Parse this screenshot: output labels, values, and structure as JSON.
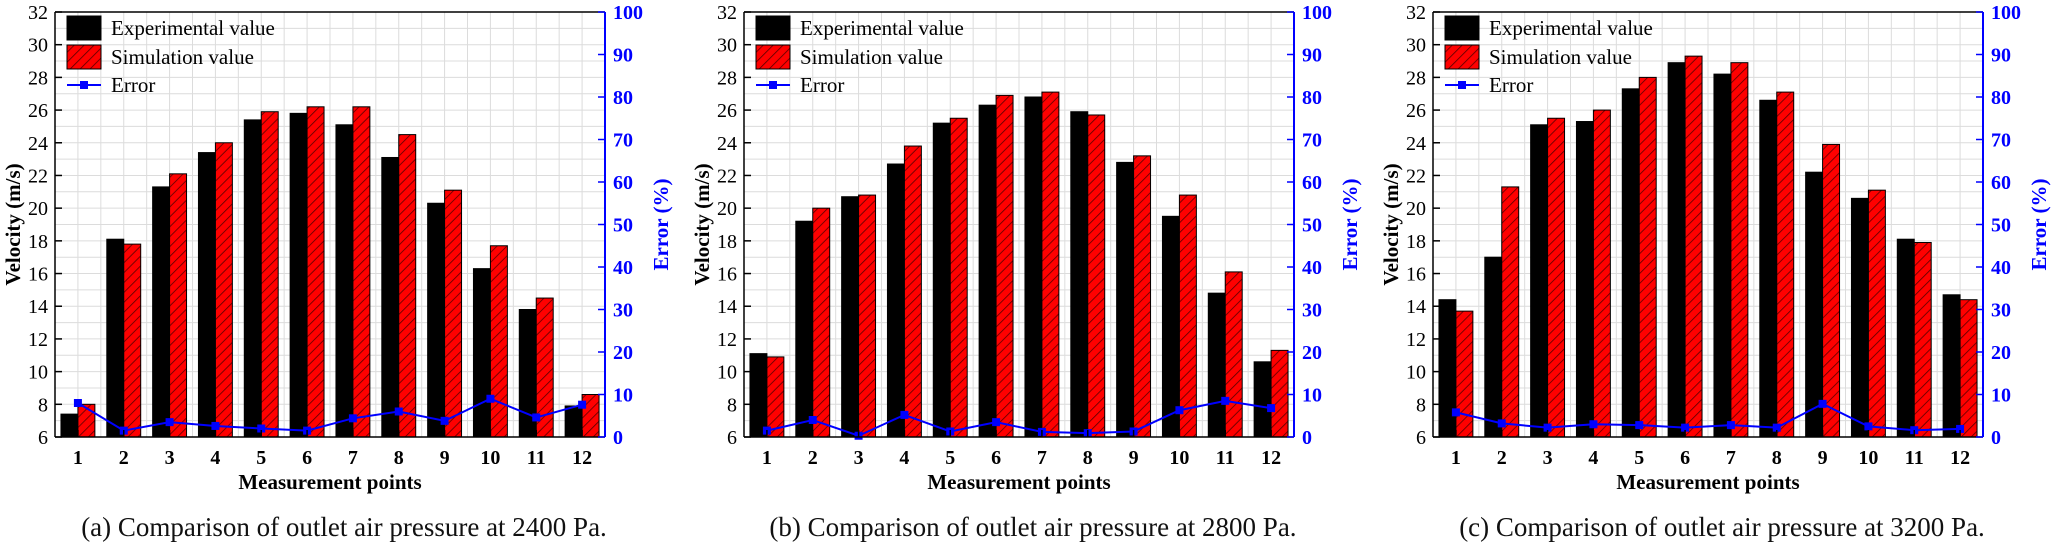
{
  "chart_data": [
    {
      "type": "bar",
      "categories": [
        "1",
        "2",
        "3",
        "4",
        "5",
        "6",
        "7",
        "8",
        "9",
        "10",
        "11",
        "12"
      ],
      "series": [
        {
          "name": "Experimental value",
          "values": [
            7.4,
            18.1,
            21.3,
            23.4,
            25.4,
            25.8,
            25.1,
            23.1,
            20.3,
            16.3,
            13.8,
            7.9
          ]
        },
        {
          "name": "Simulation value",
          "values": [
            8.0,
            17.8,
            22.1,
            24.0,
            25.9,
            26.2,
            26.2,
            24.5,
            21.1,
            17.7,
            14.5,
            8.6
          ]
        },
        {
          "name": "Error",
          "axis": "right",
          "values": [
            8.0,
            1.5,
            3.5,
            2.6,
            2.0,
            1.5,
            4.4,
            6.0,
            3.8,
            9.0,
            4.6,
            7.6
          ]
        }
      ],
      "xlabel": "Measurement points",
      "ylabel": "Velocity (m/s)",
      "y2label": "Error (%)",
      "ylim": [
        6,
        32
      ],
      "y2lim": [
        0,
        100
      ],
      "yticks": [
        "6",
        "8",
        "10",
        "12",
        "14",
        "16",
        "18",
        "20",
        "22",
        "24",
        "26",
        "28",
        "30",
        "32"
      ],
      "y2ticks": [
        "0",
        "10",
        "20",
        "30",
        "40",
        "50",
        "60",
        "70",
        "80",
        "90",
        "100"
      ],
      "grid": true,
      "legend": "top-left",
      "caption": "(a) Comparison of outlet air pressure at 2400 Pa."
    },
    {
      "type": "bar",
      "categories": [
        "1",
        "2",
        "3",
        "4",
        "5",
        "6",
        "7",
        "8",
        "9",
        "10",
        "11",
        "12"
      ],
      "series": [
        {
          "name": "Experimental value",
          "values": [
            11.1,
            19.2,
            20.7,
            22.7,
            25.2,
            26.3,
            26.8,
            25.9,
            22.8,
            19.5,
            14.8,
            10.6
          ]
        },
        {
          "name": "Simulation value",
          "values": [
            10.9,
            20.0,
            20.8,
            23.8,
            25.5,
            26.9,
            27.1,
            25.7,
            23.2,
            20.8,
            16.1,
            11.3
          ]
        },
        {
          "name": "Error",
          "axis": "right",
          "values": [
            1.5,
            4.0,
            0.3,
            5.2,
            1.3,
            3.5,
            1.2,
            0.9,
            1.3,
            6.3,
            8.5,
            6.8
          ]
        }
      ],
      "xlabel": "Measurement points",
      "ylabel": "Velocity (m/s)",
      "y2label": "Error (%)",
      "ylim": [
        6,
        32
      ],
      "y2lim": [
        0,
        100
      ],
      "yticks": [
        "6",
        "8",
        "10",
        "12",
        "14",
        "16",
        "18",
        "20",
        "22",
        "24",
        "26",
        "28",
        "30",
        "32"
      ],
      "y2ticks": [
        "0",
        "10",
        "20",
        "30",
        "40",
        "50",
        "60",
        "70",
        "80",
        "90",
        "100"
      ],
      "grid": true,
      "legend": "top-left",
      "caption": "(b) Comparison of outlet air pressure at 2800 Pa."
    },
    {
      "type": "bar",
      "categories": [
        "1",
        "2",
        "3",
        "4",
        "5",
        "6",
        "7",
        "8",
        "9",
        "10",
        "11",
        "12"
      ],
      "series": [
        {
          "name": "Experimental value",
          "values": [
            14.4,
            17.0,
            25.1,
            25.3,
            27.3,
            28.9,
            28.2,
            26.6,
            22.2,
            20.6,
            18.1,
            14.7
          ]
        },
        {
          "name": "Simulation value",
          "values": [
            13.7,
            21.3,
            25.5,
            26.0,
            28.0,
            29.3,
            28.9,
            27.1,
            23.9,
            21.1,
            17.9,
            14.4
          ]
        },
        {
          "name": "Error",
          "axis": "right",
          "values": [
            5.8,
            3.2,
            2.2,
            3.0,
            2.8,
            2.2,
            2.8,
            2.2,
            7.8,
            2.5,
            1.6,
            1.9
          ]
        }
      ],
      "xlabel": "Measurement points",
      "ylabel": "Velocity (m/s)",
      "y2label": "Error (%)",
      "ylim": [
        6,
        32
      ],
      "y2lim": [
        0,
        100
      ],
      "yticks": [
        "6",
        "8",
        "10",
        "12",
        "14",
        "16",
        "18",
        "20",
        "22",
        "24",
        "26",
        "28",
        "30",
        "32"
      ],
      "y2ticks": [
        "0",
        "10",
        "20",
        "30",
        "40",
        "50",
        "60",
        "70",
        "80",
        "90",
        "100"
      ],
      "grid": true,
      "legend": "top-left",
      "caption": "(c) Comparison of outlet air pressure at 3200 Pa."
    }
  ],
  "colors": {
    "experimental": "#000000",
    "simulation": "#ff0000",
    "error": "#0000ff",
    "grid": "#dcdcdc",
    "axis": "#000000",
    "right_axis": "#0000ff"
  }
}
